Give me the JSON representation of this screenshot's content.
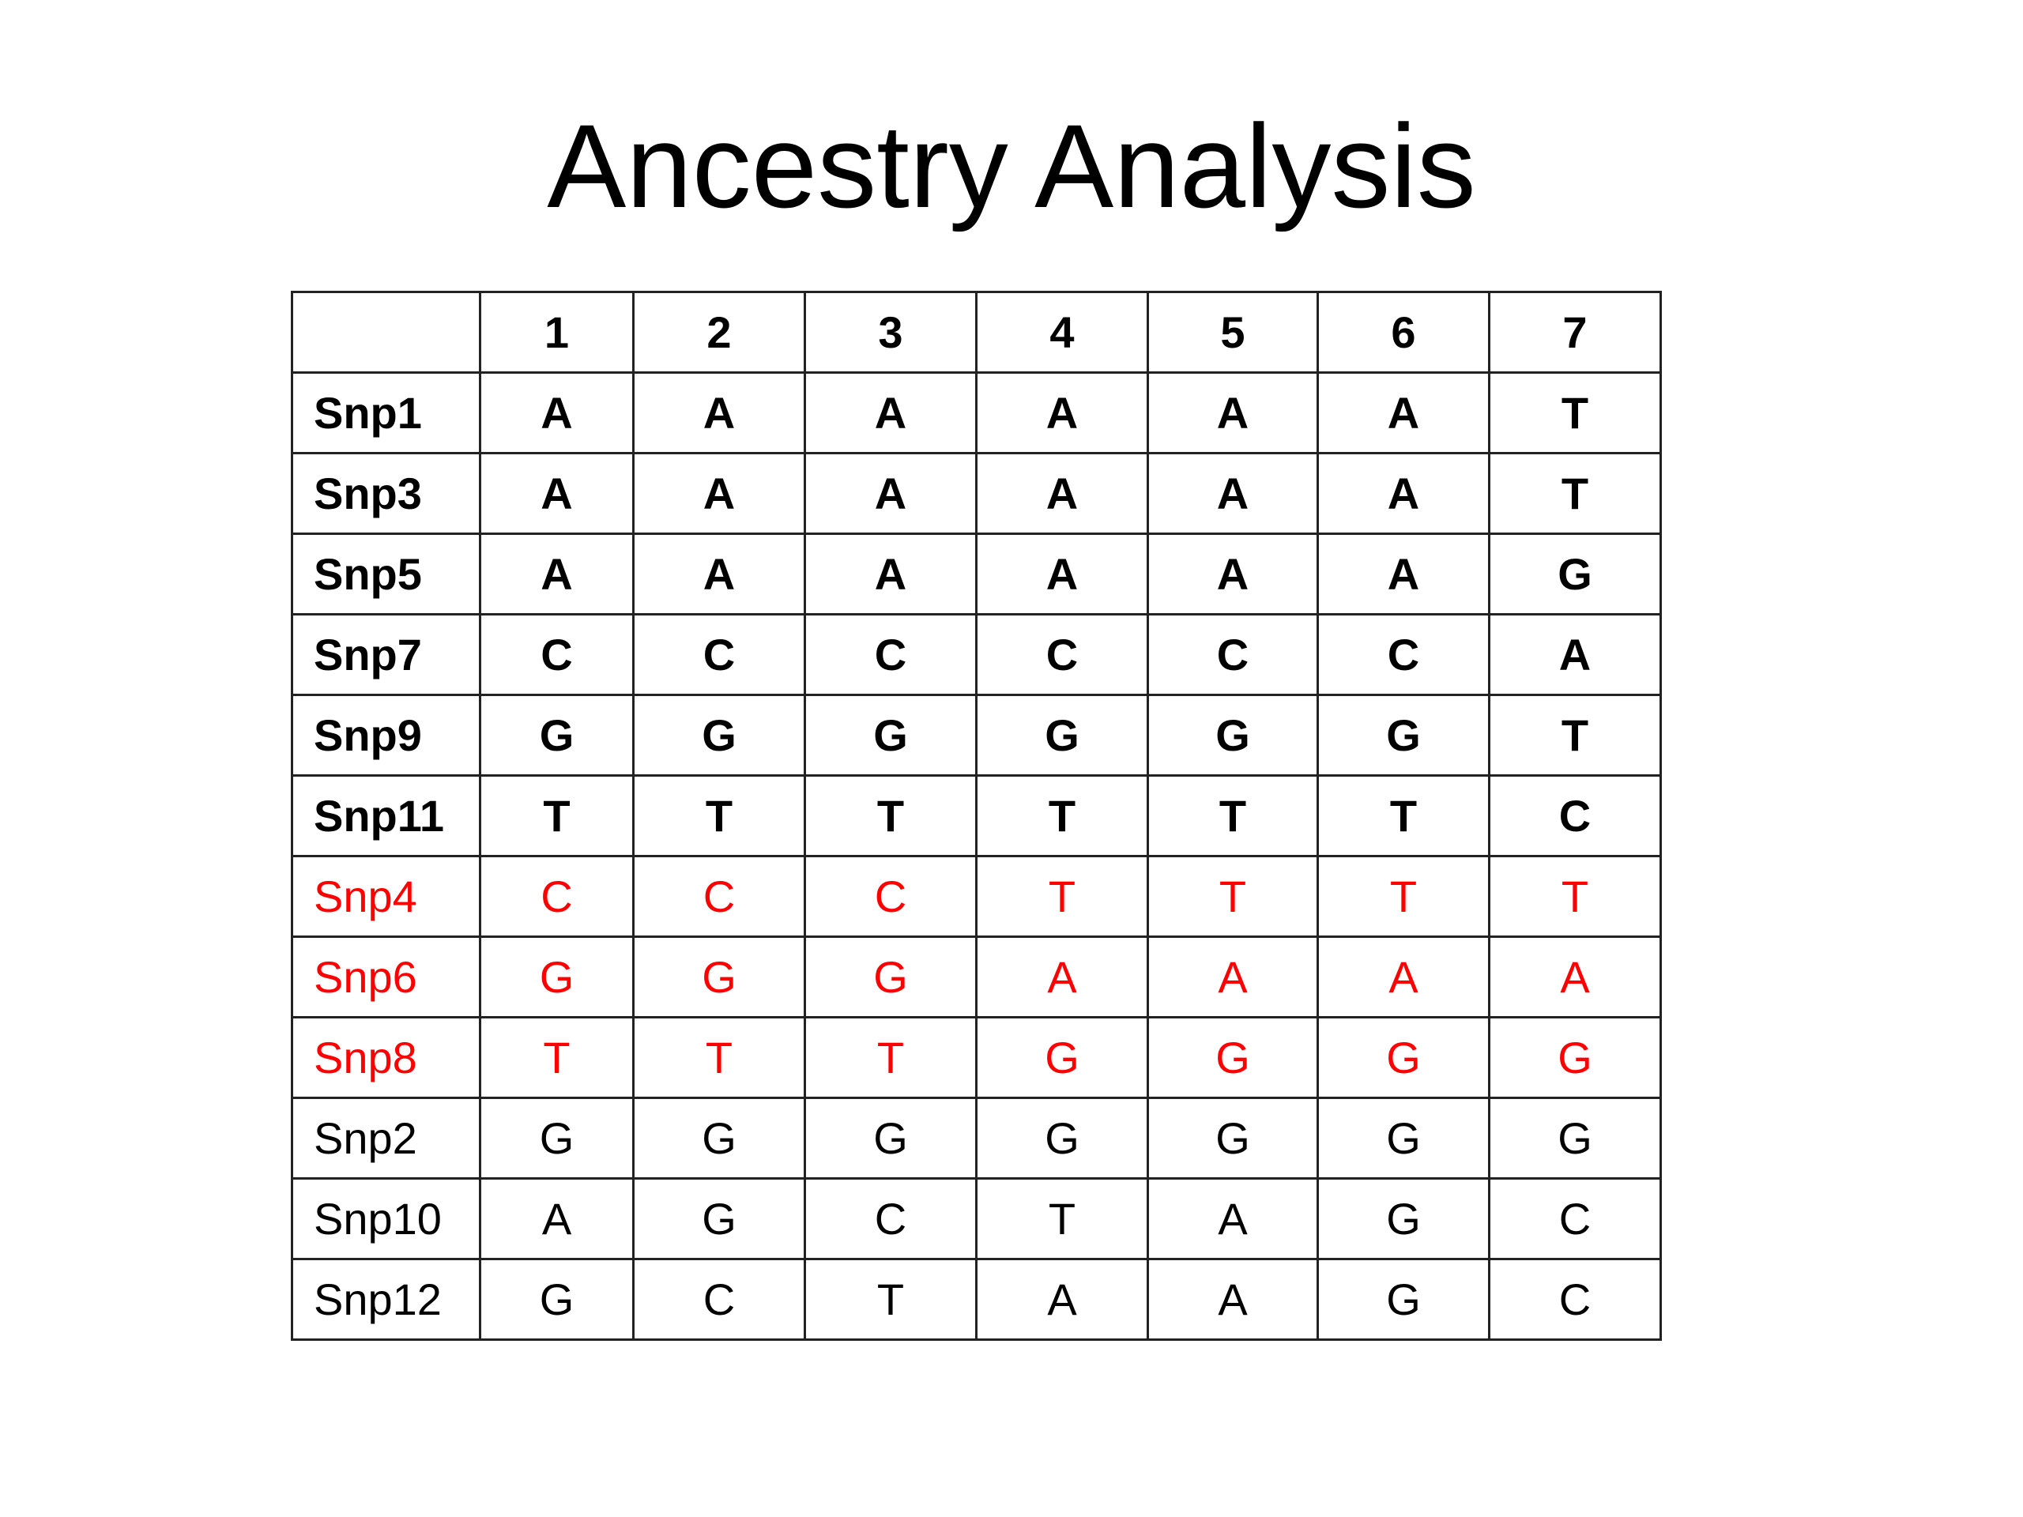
{
  "title": "Ancestry Analysis",
  "table": {
    "header": [
      "1",
      "2",
      "3",
      "4",
      "5",
      "6",
      "7"
    ],
    "rows": [
      [
        "Snp1",
        "A",
        "A",
        "A",
        "A",
        "A",
        "A",
        "T"
      ],
      [
        "Snp3",
        "A",
        "A",
        "A",
        "A",
        "A",
        "A",
        "T"
      ],
      [
        "Snp5",
        "A",
        "A",
        "A",
        "A",
        "A",
        "A",
        "G"
      ],
      [
        "Snp7",
        "C",
        "C",
        "C",
        "C",
        "C",
        "C",
        "A"
      ],
      [
        "Snp9",
        "G",
        "G",
        "G",
        "G",
        "G",
        "G",
        "T"
      ],
      [
        "Snp11",
        "T",
        "T",
        "T",
        "T",
        "T",
        "T",
        "C"
      ],
      [
        "Snp4",
        "C",
        "C",
        "C",
        "T",
        "T",
        "T",
        "T"
      ],
      [
        "Snp6",
        "G",
        "G",
        "G",
        "A",
        "A",
        "A",
        "A"
      ],
      [
        "Snp8",
        "T",
        "T",
        "T",
        "G",
        "G",
        "G",
        "G"
      ],
      [
        "Snp2",
        "G",
        "G",
        "G",
        "G",
        "G",
        "G",
        "G"
      ],
      [
        "Snp10",
        "A",
        "G",
        "C",
        "T",
        "A",
        "G",
        "C"
      ],
      [
        "Snp12",
        "G",
        "C",
        "T",
        "A",
        "A",
        "G",
        "C"
      ]
    ]
  }
}
